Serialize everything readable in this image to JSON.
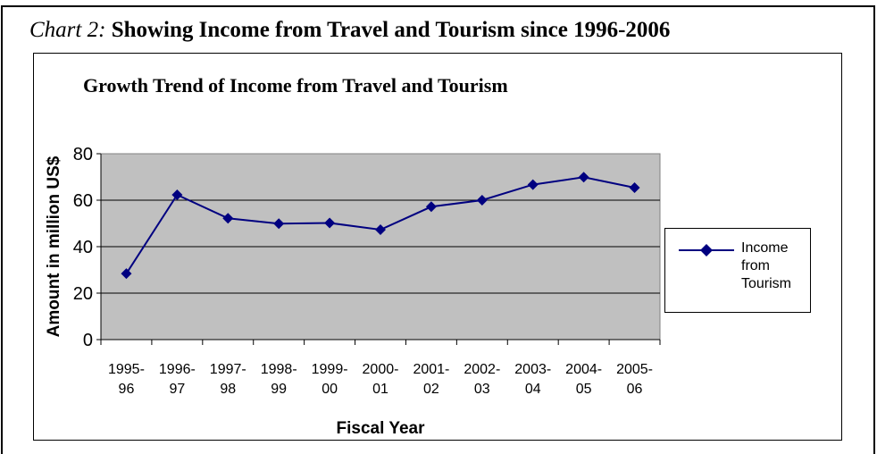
{
  "caption": {
    "label": "Chart 2:",
    "text": " Showing Income from Travel and Tourism since 1996-2006"
  },
  "chart_data": {
    "type": "line",
    "title": "Growth Trend of Income from Travel and Tourism",
    "xlabel": "Fiscal Year",
    "ylabel": "Amount in million US$",
    "categories": [
      [
        "1995-",
        "96"
      ],
      [
        "1996-",
        "97"
      ],
      [
        "1997-",
        "98"
      ],
      [
        "1998-",
        "99"
      ],
      [
        "1999-",
        "00"
      ],
      [
        "2000-",
        "01"
      ],
      [
        "2001-",
        "02"
      ],
      [
        "2002-",
        "03"
      ],
      [
        "2003-",
        "04"
      ],
      [
        "2004-",
        "05"
      ],
      [
        "2005-",
        "06"
      ]
    ],
    "series": [
      {
        "name": "Income from Tourism",
        "values": [
          28.4,
          62.3,
          52.2,
          49.9,
          50.2,
          47.3,
          57.2,
          60.0,
          66.7,
          69.9,
          65.4
        ],
        "color": "#000080"
      }
    ],
    "ylim": [
      0,
      80
    ],
    "yticks": [
      0,
      20,
      40,
      60,
      80
    ],
    "grid": true,
    "plot_background": "#c0c0c0",
    "legend_position": "right"
  },
  "legend": {
    "lines": [
      "Income",
      "from",
      "Tourism"
    ]
  }
}
